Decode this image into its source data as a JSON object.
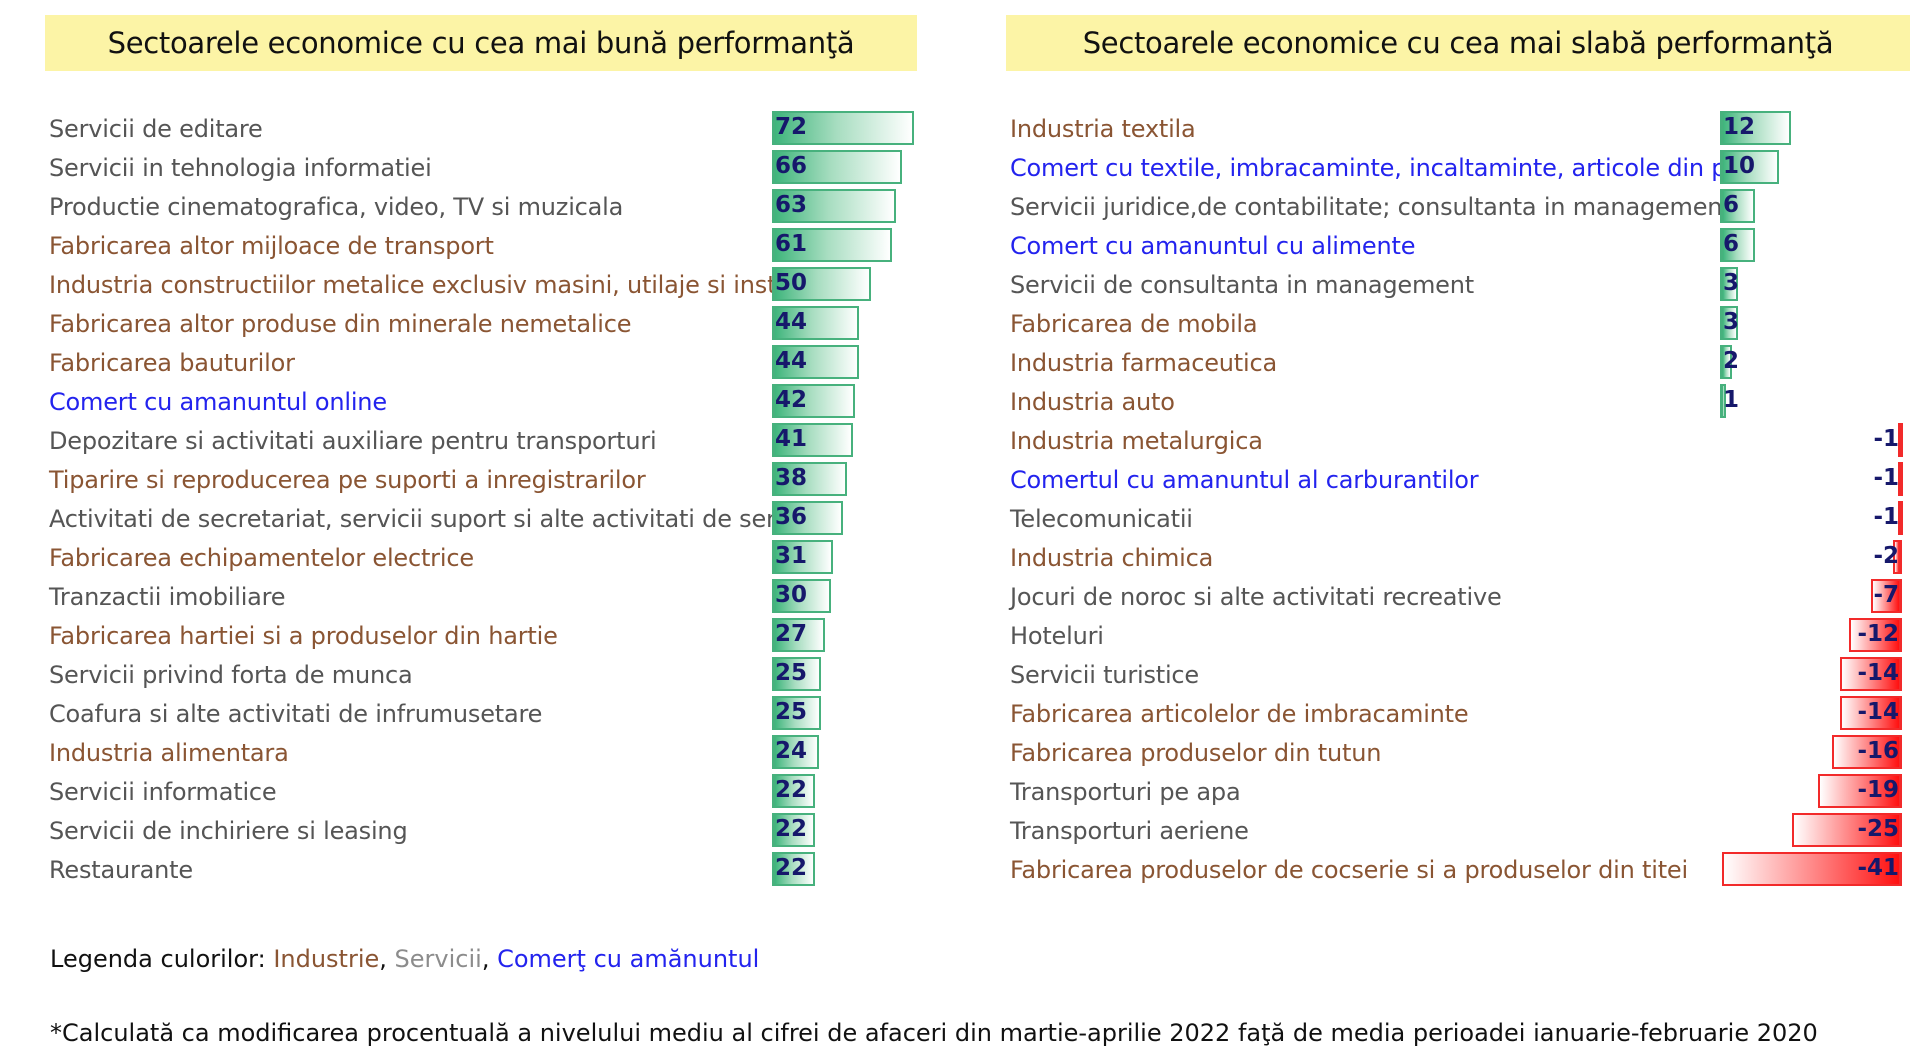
{
  "colors": {
    "Industrie": "#8a5533",
    "Servicii": "#555555",
    "Comert": "#2323ee",
    "positive_bar": "#47b17d",
    "negative_bar": "#f22a2a",
    "value_text": "#16186b",
    "title_bg": "#fcf4a6"
  },
  "chart_data": [
    {
      "type": "bar",
      "orientation": "horizontal",
      "title": "Sectoarele economice cu cea mai bună performanţă",
      "categories": [
        "Servicii de editare",
        "Servicii in tehnologia informatiei",
        "Productie cinematografica, video, TV si muzicala",
        "Fabricarea altor mijloace de transport",
        "Industria constructiilor metalice exclusiv masini, utilaje si instalatii",
        "Fabricarea altor produse din minerale nemetalice",
        "Fabricarea bauturilor",
        "Comert cu amanuntul online",
        "Depozitare si activitati auxiliare pentru transporturi",
        "Tiparire si reproducerea pe suporti a inregistrarilor",
        "Activitati de secretariat, servicii suport si alte activitati de servicii",
        "Fabricarea echipamentelor electrice",
        "Tranzactii imobiliare",
        "Fabricarea hartiei si a produselor din hartie",
        "Servicii privind forta de munca",
        "Coafura si alte activitati de infrumusetare",
        "Industria alimentara",
        "Servicii informatice",
        "Servicii de inchiriere si leasing",
        "Restaurante"
      ],
      "groups": [
        "Servicii",
        "Servicii",
        "Servicii",
        "Industrie",
        "Industrie",
        "Industrie",
        "Industrie",
        "Comert",
        "Servicii",
        "Industrie",
        "Servicii",
        "Industrie",
        "Servicii",
        "Industrie",
        "Servicii",
        "Servicii",
        "Industrie",
        "Servicii",
        "Servicii",
        "Servicii"
      ],
      "values": [
        72,
        66,
        63,
        61,
        50,
        44,
        44,
        42,
        41,
        38,
        36,
        31,
        30,
        27,
        25,
        25,
        24,
        22,
        22,
        22
      ],
      "xlim": [
        0,
        72
      ]
    },
    {
      "type": "bar",
      "orientation": "horizontal",
      "title": "Sectoarele economice cu cea mai slabă performanţă",
      "categories": [
        "Industria textila",
        "Comert cu textile, imbracaminte, incaltaminte, articole din piele",
        "Servicii juridice,de contabilitate; consultanta in management",
        "Comert cu amanuntul cu alimente",
        "Servicii de consultanta in management",
        "Fabricarea de mobila",
        "Industria farmaceutica",
        "Industria auto",
        "Industria metalurgica",
        "Comertul cu amanuntul al carburantilor",
        "Telecomunicatii",
        "Industria chimica",
        "Jocuri de noroc si alte activitati recreative",
        "Hoteluri",
        "Servicii turistice",
        "Fabricarea articolelor de imbracaminte",
        "Fabricarea produselor din tutun",
        "Transporturi pe apa",
        "Transporturi aeriene",
        "Fabricarea produselor de cocserie si a produselor din titei"
      ],
      "groups": [
        "Industrie",
        "Comert",
        "Servicii",
        "Comert",
        "Servicii",
        "Industrie",
        "Industrie",
        "Industrie",
        "Industrie",
        "Comert",
        "Servicii",
        "Industrie",
        "Servicii",
        "Servicii",
        "Servicii",
        "Industrie",
        "Industrie",
        "Servicii",
        "Servicii",
        "Industrie"
      ],
      "values": [
        12,
        10,
        6,
        6,
        3,
        3,
        2,
        1,
        -1,
        -1,
        -1,
        -2,
        -7,
        -12,
        -14,
        -14,
        -16,
        -19,
        -25,
        -41
      ],
      "xlim": [
        -41,
        12
      ]
    }
  ],
  "legend": {
    "prefix": "Legenda culorilor: ",
    "industrie": "Industrie",
    "sep1": ", ",
    "servicii": "Servicii",
    "sep2": ", ",
    "comert": "Comerţ cu amănuntul"
  },
  "footnote": "*Calculată ca modificarea procentuală a nivelului mediu al cifrei de afaceri din martie-aprilie 2022 faţă de media perioadei ianuarie-februarie 2020"
}
